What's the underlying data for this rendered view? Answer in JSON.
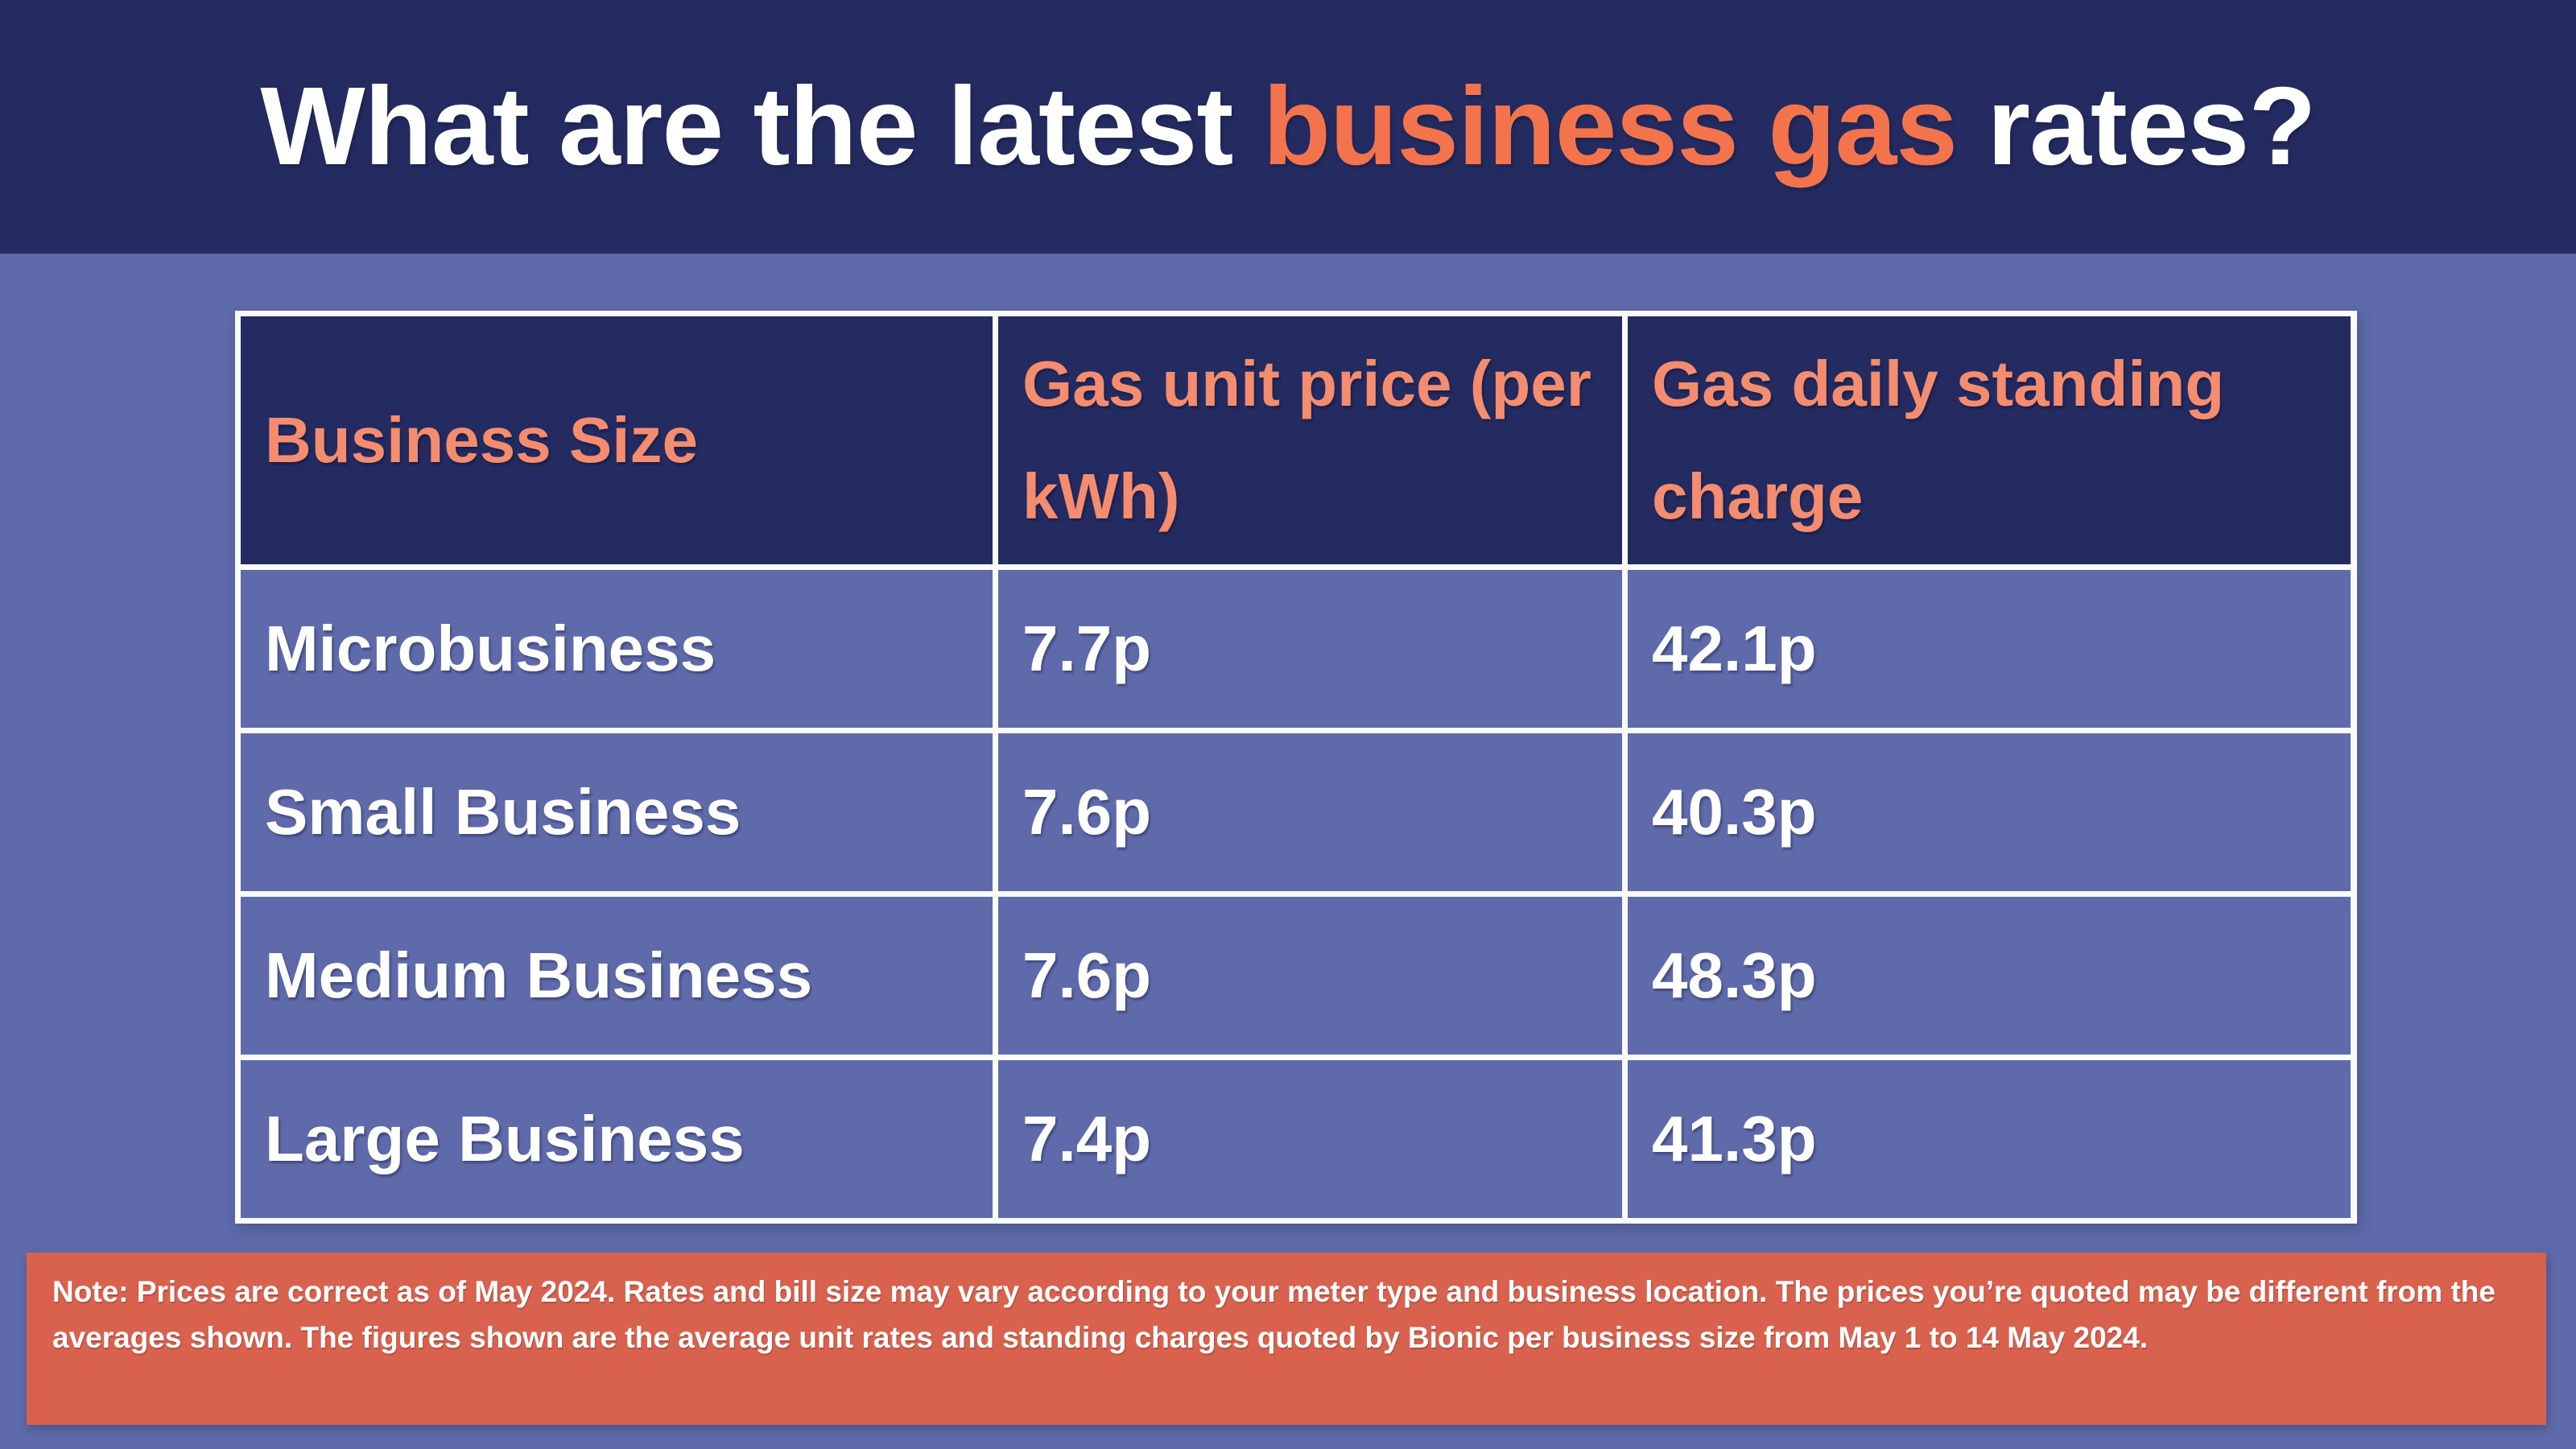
{
  "title": {
    "prefix": "What are the latest ",
    "accent": "business gas",
    "suffix": " rates?"
  },
  "colors": {
    "band_navy": "#232b61",
    "page_periwinkle": "#5e6aa9",
    "title_accent_orange": "#f3734d",
    "header_text_salmon": "#f48d70",
    "note_coral": "#d9624f",
    "grid_white": "#fafafa",
    "body_text_white": "#ffffff"
  },
  "table": {
    "headers": {
      "business_size": "Business Size",
      "unit_price": "Gas unit price (per kWh)",
      "standing_charge": "Gas daily standing charge"
    },
    "rows": [
      {
        "label": "Microbusiness",
        "unit_price": "7.7p",
        "standing_charge": "42.1p"
      },
      {
        "label": "Small Business",
        "unit_price": "7.6p",
        "standing_charge": "40.3p"
      },
      {
        "label": "Medium Business",
        "unit_price": "7.6p",
        "standing_charge": "48.3p"
      },
      {
        "label": "Large Business",
        "unit_price": "7.4p",
        "standing_charge": "41.3p"
      }
    ]
  },
  "note": {
    "text": "Note: Prices are correct as of May 2024. Rates and bill size may vary according to your meter type and business location. The prices you’re quoted may be different from the averages shown. The figures shown are the average unit rates and standing charges quoted by Bionic per business size from May 1 to 14 May 2024."
  },
  "chart_data": {
    "type": "table",
    "title": "What are the latest business gas rates?",
    "columns": [
      "Business Size",
      "Gas unit price (per kWh)",
      "Gas daily standing charge"
    ],
    "rows": [
      [
        "Microbusiness",
        "7.7p",
        "42.1p"
      ],
      [
        "Small Business",
        "7.6p",
        "40.3p"
      ],
      [
        "Medium Business",
        "7.6p",
        "48.3p"
      ],
      [
        "Large Business",
        "7.4p",
        "41.3p"
      ]
    ],
    "unit_price_pence_per_kwh": [
      7.7,
      7.6,
      7.6,
      7.4
    ],
    "daily_standing_charge_pence": [
      42.1,
      40.3,
      48.3,
      41.3
    ],
    "footnote": "Note: Prices are correct as of May 2024. Rates and bill size may vary according to your meter type and business location. The prices you’re quoted may be different from the averages shown. The figures shown are the average unit rates and standing charges quoted by Bionic per business size from May 1 to 14 May 2024."
  }
}
